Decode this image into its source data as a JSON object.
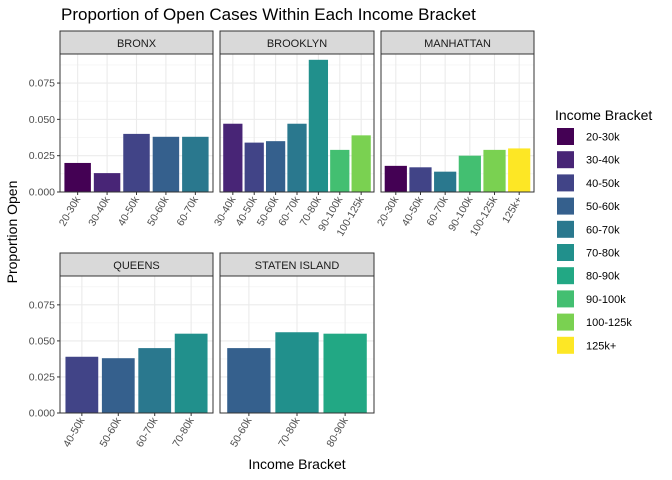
{
  "chart_data": {
    "type": "bar",
    "title": "Proportion of Open Cases Within Each Income Bracket",
    "xlabel": "Income Bracket",
    "ylabel": "Proportion Open",
    "ylim": [
      0,
      0.095
    ],
    "yticks": [
      "0.000",
      "0.025",
      "0.050",
      "0.075"
    ],
    "ytick_values": [
      0,
      0.025,
      0.05,
      0.075
    ],
    "grid": true,
    "legend": {
      "title": "Income Bracket",
      "placement": "right"
    },
    "colors": {
      "20-30k": "#440154",
      "30-40k": "#482576",
      "40-50k": "#414487",
      "50-60k": "#35608D",
      "60-70k": "#2A788E",
      "70-80k": "#21908C",
      "80-90k": "#22A884",
      "90-100k": "#43BF71",
      "100-125k": "#7AD151",
      "125k+": "#FDE725"
    },
    "legend_items": [
      "20-30k",
      "30-40k",
      "40-50k",
      "50-60k",
      "60-70k",
      "70-80k",
      "80-90k",
      "90-100k",
      "100-125k",
      "125k+"
    ],
    "panels": [
      {
        "name": "BRONX",
        "categories": [
          "20-30k",
          "30-40k",
          "40-50k",
          "50-60k",
          "60-70k"
        ],
        "values": [
          0.02,
          0.013,
          0.04,
          0.038,
          0.038
        ]
      },
      {
        "name": "BROOKLYN",
        "categories": [
          "30-40k",
          "40-50k",
          "50-60k",
          "60-70k",
          "70-80k",
          "90-100k",
          "100-125k"
        ],
        "values": [
          0.047,
          0.034,
          0.035,
          0.047,
          0.091,
          0.029,
          0.039
        ]
      },
      {
        "name": "MANHATTAN",
        "categories": [
          "20-30k",
          "40-50k",
          "60-70k",
          "90-100k",
          "100-125k",
          "125k+"
        ],
        "values": [
          0.018,
          0.017,
          0.014,
          0.025,
          0.029,
          0.03
        ]
      },
      {
        "name": "QUEENS",
        "categories": [
          "40-50k",
          "50-60k",
          "60-70k",
          "70-80k"
        ],
        "values": [
          0.039,
          0.038,
          0.045,
          0.055
        ]
      },
      {
        "name": "STATEN ISLAND",
        "categories": [
          "50-60k",
          "70-80k",
          "80-90k"
        ],
        "values": [
          0.045,
          0.056,
          0.055
        ]
      }
    ]
  }
}
